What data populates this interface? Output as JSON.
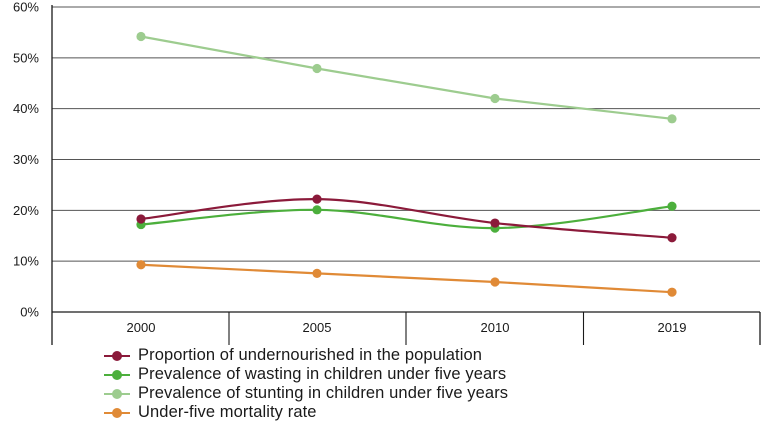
{
  "chart_data": {
    "type": "line",
    "categories": [
      "2000",
      "2005",
      "2010",
      "2019"
    ],
    "y_ticks": [
      "0%",
      "10%",
      "20%",
      "30%",
      "40%",
      "50%",
      "60%"
    ],
    "ylim": [
      0,
      60
    ],
    "grid": true,
    "legend_position": "bottom",
    "series": [
      {
        "name": "Proportion of undernourished in the population",
        "color": "#8b1a3a",
        "smooth": true,
        "values": [
          18.3,
          22.2,
          17.5,
          14.6
        ]
      },
      {
        "name": "Prevalence of wasting in children under five years",
        "color": "#4caf3c",
        "smooth": true,
        "values": [
          17.2,
          20.1,
          16.5,
          20.8
        ]
      },
      {
        "name": "Prevalence of stunting in children under five years",
        "color": "#9dcc8f",
        "smooth": false,
        "values": [
          54.2,
          47.9,
          42.0,
          38.0
        ]
      },
      {
        "name": "Under-five mortality rate",
        "color": "#e08a36",
        "smooth": false,
        "values": [
          9.3,
          7.6,
          5.9,
          3.9
        ]
      }
    ]
  }
}
